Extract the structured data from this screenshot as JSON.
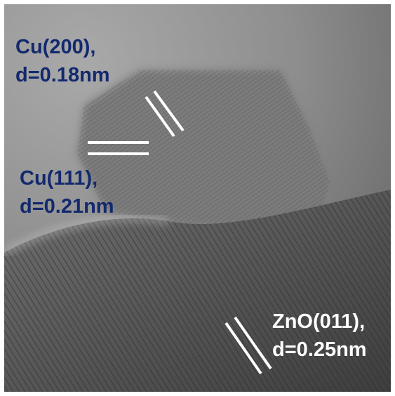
{
  "annotations": [
    {
      "line1": "Cu(200),",
      "line2": "d=0.18nm"
    },
    {
      "line1": "Cu(111),",
      "line2": "d=0.21nm"
    },
    {
      "line1": "ZnO(011),",
      "line2": "d=0.25nm"
    }
  ]
}
